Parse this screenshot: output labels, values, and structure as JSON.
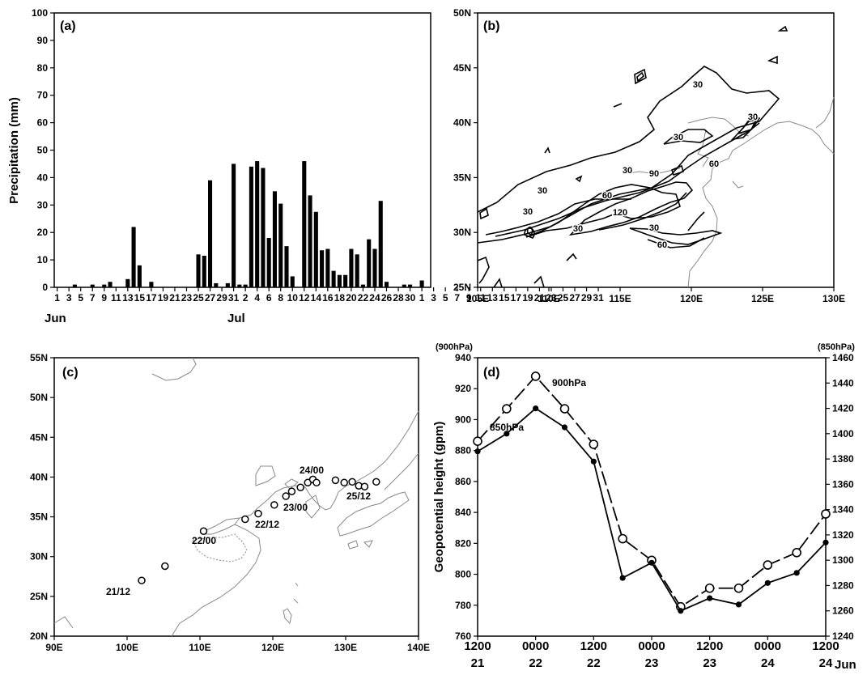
{
  "chart_data": [
    {
      "panel_label": "(a)",
      "type": "bar",
      "ylabel": "Precipitation (mm)",
      "ylim": [
        0,
        100
      ],
      "yticks": [
        0,
        10,
        20,
        30,
        40,
        50,
        60,
        70,
        80,
        90,
        100
      ],
      "xtick_labels": [
        "1",
        "3",
        "5",
        "7",
        "9",
        "11",
        "13",
        "15",
        "17",
        "19",
        "21",
        "23",
        "25",
        "27",
        "29",
        "31",
        "2",
        "4",
        "6",
        "8",
        "10",
        "12",
        "14",
        "16",
        "18",
        "20",
        "22",
        "24",
        "26",
        "28",
        "30",
        "1",
        "3",
        "5",
        "7",
        "9",
        "11",
        "13",
        "15",
        "17",
        "19",
        "21",
        "23",
        "25",
        "27",
        "29",
        "31"
      ],
      "month_labels": [
        "Jun",
        "Jul"
      ],
      "values": [
        0,
        0,
        0,
        1,
        0,
        0,
        1,
        0,
        1,
        2,
        0,
        0,
        3,
        22,
        8,
        0,
        2,
        0,
        0,
        0,
        0,
        0,
        0,
        0,
        12,
        11.5,
        39,
        1.5,
        0,
        1.5,
        45,
        1,
        1,
        44,
        46,
        43.5,
        18,
        35,
        30.5,
        15,
        4,
        0,
        46,
        33.5,
        27.5,
        13.5,
        14,
        6,
        4.5,
        4.5,
        14,
        12,
        1,
        17.5,
        14,
        31.5,
        2,
        0,
        0,
        1,
        1,
        0,
        2.5,
        0
      ]
    },
    {
      "panel_label": "(b)",
      "type": "contour",
      "xlabel_ticks": [
        "105E",
        "110E",
        "115E",
        "120E",
        "125E",
        "130E"
      ],
      "ylabel_ticks": [
        "25N",
        "30N",
        "35N",
        "40N",
        "45N",
        "50N"
      ],
      "contour_labels": [
        "30",
        "30",
        "30",
        "30",
        "30",
        "30",
        "30",
        "60",
        "60",
        "60",
        "90",
        "120",
        "30"
      ]
    },
    {
      "panel_label": "(c)",
      "type": "scatter",
      "xlabel_ticks": [
        "90E",
        "100E",
        "110E",
        "120E",
        "130E",
        "140E"
      ],
      "ylabel_ticks": [
        "20N",
        "25N",
        "30N",
        "35N",
        "40N",
        "45N",
        "50N",
        "55N"
      ],
      "track_lon": [
        102,
        105.2,
        110.5,
        116.2,
        118,
        120.2,
        121.8,
        122.6,
        123.8,
        124.8,
        125.5,
        126,
        128.6,
        129.8,
        130.9,
        131.8,
        132.6,
        134.2
      ],
      "track_lat": [
        27,
        28.8,
        33.2,
        34.7,
        35.4,
        36.5,
        37.6,
        38.2,
        38.7,
        39.3,
        39.7,
        39.3,
        39.6,
        39.3,
        39.4,
        38.9,
        38.8,
        39.4
      ],
      "point_labels": [
        "21/12",
        "22/00",
        "22/12",
        "23/00",
        "24/00",
        "25/12"
      ]
    },
    {
      "panel_label": "(d)",
      "type": "line",
      "ylabel": "Geopotential height (gpm)",
      "left_axis_title": "(900hPa)",
      "right_axis_title": "(850hPa)",
      "ylim_left": [
        760,
        940
      ],
      "ylim_right": [
        1240,
        1460
      ],
      "yticks_left": [
        760,
        780,
        800,
        820,
        840,
        860,
        880,
        900,
        920,
        940
      ],
      "yticks_right": [
        1240,
        1260,
        1280,
        1300,
        1320,
        1340,
        1360,
        1380,
        1400,
        1420,
        1440,
        1460
      ],
      "x_hours": [
        0,
        6,
        12,
        18,
        24,
        30,
        36,
        42,
        48,
        54,
        60,
        66,
        72
      ],
      "xtick_top": [
        "1200",
        "0000",
        "1200",
        "0000",
        "1200",
        "0000",
        "1200"
      ],
      "xtick_bottom": [
        "21",
        "22",
        "22",
        "23",
        "23",
        "24",
        "24"
      ],
      "x_unit_label": "Jun",
      "series": [
        {
          "name": "900hPa",
          "axis": "left",
          "marker": "open",
          "dash": true,
          "values": [
            886,
            907,
            928,
            907,
            884,
            823,
            809,
            779,
            791,
            791,
            806,
            814,
            839
          ]
        },
        {
          "name": "850hPa",
          "axis": "right",
          "marker": "filled",
          "dash": false,
          "values": [
            1386,
            1400,
            1420,
            1405,
            1378,
            1286,
            1298,
            1260,
            1270,
            1265,
            1282,
            1290,
            1314
          ]
        }
      ]
    }
  ]
}
